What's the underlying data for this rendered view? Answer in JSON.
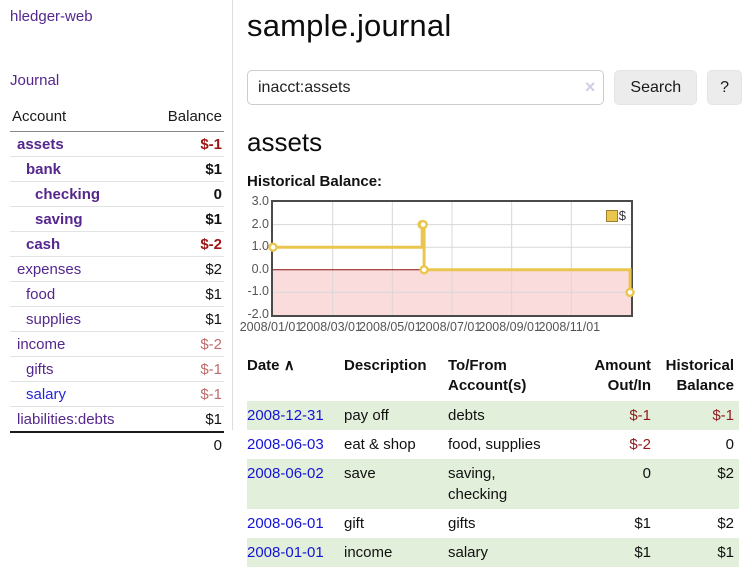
{
  "app": {
    "title": "hledger-web"
  },
  "sidebar": {
    "journal_label": "Journal",
    "accounts_table": {
      "headers": {
        "account": "Account",
        "balance": "Balance"
      },
      "rows": [
        {
          "name": "assets",
          "balance": "$-1",
          "level": 0,
          "emphasized": true,
          "link_style": "purple"
        },
        {
          "name": "bank",
          "balance": "$1",
          "level": 1,
          "emphasized": true,
          "link_style": "purple"
        },
        {
          "name": "checking",
          "balance": "0",
          "level": 2,
          "emphasized": true,
          "link_style": "purple"
        },
        {
          "name": "saving",
          "balance": "$1",
          "level": 2,
          "emphasized": true,
          "link_style": "purple"
        },
        {
          "name": "cash",
          "balance": "$-2",
          "level": 1,
          "emphasized": true,
          "link_style": "purple"
        },
        {
          "name": "expenses",
          "balance": "$2",
          "level": 0,
          "emphasized": false,
          "link_style": "purple"
        },
        {
          "name": "food",
          "balance": "$1",
          "level": 1,
          "emphasized": false,
          "link_style": "purple"
        },
        {
          "name": "supplies",
          "balance": "$1",
          "level": 1,
          "emphasized": false,
          "link_style": "purple"
        },
        {
          "name": "income",
          "balance": "$-2",
          "level": 0,
          "emphasized": false,
          "link_style": "purple"
        },
        {
          "name": "gifts",
          "balance": "$-1",
          "level": 1,
          "emphasized": false,
          "link_style": "purple"
        },
        {
          "name": "salary",
          "balance": "$-1",
          "level": 1,
          "emphasized": false,
          "link_style": "blue"
        },
        {
          "name": "liabilities:debts",
          "balance": "$1",
          "level": 0,
          "emphasized": false,
          "link_style": "purple"
        }
      ],
      "total": "0"
    }
  },
  "main": {
    "title": "sample.journal",
    "search": {
      "value": "inacct:assets",
      "clear_icon": "×",
      "button_label": "Search",
      "help_label": "?"
    },
    "account_heading": "assets",
    "register_table": {
      "headers": {
        "date": "Date",
        "description": "Description",
        "accounts": "To/From Account(s)",
        "amount": "Amount Out/In",
        "balance": "Historical Balance"
      },
      "sort_ascending_icon": "∧",
      "rows": [
        {
          "date": "2008-12-31",
          "description": "pay off",
          "accounts": "debts",
          "amount": "$-1",
          "balance": "$-1"
        },
        {
          "date": "2008-06-03",
          "description": "eat & shop",
          "accounts": "food, supplies",
          "amount": "$-2",
          "balance": "0"
        },
        {
          "date": "2008-06-02",
          "description": "save",
          "accounts": "saving, checking",
          "amount": "0",
          "balance": "$2"
        },
        {
          "date": "2008-06-01",
          "description": "gift",
          "accounts": "gifts",
          "amount": "$1",
          "balance": "$2"
        },
        {
          "date": "2008-01-01",
          "description": "income",
          "accounts": "salary",
          "amount": "$1",
          "balance": "$1"
        }
      ]
    }
  },
  "chart_data": {
    "type": "line",
    "title": "Historical Balance:",
    "step": true,
    "series": [
      {
        "name": "$",
        "points": [
          [
            "2008-01-01",
            1
          ],
          [
            "2008-06-01",
            2
          ],
          [
            "2008-06-02",
            2
          ],
          [
            "2008-06-03",
            0
          ],
          [
            "2008-12-31",
            -1
          ]
        ]
      }
    ],
    "x_ticks": [
      "2008/01/01",
      "2008/03/01",
      "2008/05/01",
      "2008/07/01",
      "2008/09/01",
      "2008/11/01"
    ],
    "y_ticks": [
      3.0,
      2.0,
      1.0,
      0.0,
      -1.0,
      -2.0
    ],
    "ylim": [
      -2,
      3
    ],
    "x_range": [
      "2008-01-01",
      "2008-12-31"
    ],
    "legend": {
      "label": "$",
      "position": "top-right"
    },
    "grid": true,
    "colors": {
      "line": "#eac64e",
      "negative_fill": "#fbdcdc",
      "zero_line": "#8c0d0d",
      "grid": "#d8d8d8",
      "plot_border": "#4a4a4a"
    }
  }
}
